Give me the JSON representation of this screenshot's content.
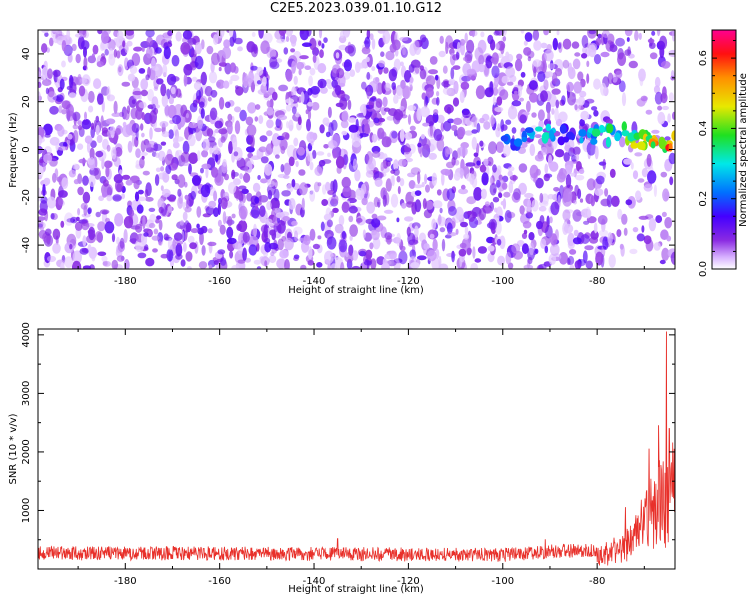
{
  "figure_title": "C2E5.2023.039.01.10.G12",
  "colors": {
    "snr_line": "#e8302a",
    "spectrogram_base": "#8a2be2",
    "axis": "#000000",
    "background": "#ffffff"
  },
  "chart_data": [
    {
      "id": "spectrogram",
      "type": "heatmap",
      "title": "",
      "xlabel": "Height of straight line (km)",
      "ylabel": "Frequency (Hz)",
      "xlim": [
        -198.5,
        -63.5
      ],
      "ylim": [
        -50,
        50
      ],
      "x_ticks": [
        -180,
        -160,
        -140,
        -120,
        -100,
        -80
      ],
      "x_tick_labels": [
        "-180",
        "-160",
        "-140",
        "-120",
        "-100",
        "-80"
      ],
      "y_ticks": [
        -40,
        -20,
        0,
        20,
        40
      ],
      "y_tick_labels": [
        "-40",
        "-20",
        "0",
        "20",
        "40"
      ],
      "grid": false,
      "colorbar": {
        "label": "Normalized spectral amplitude",
        "range": [
          0.0,
          0.68
        ],
        "ticks": [
          0.0,
          0.2,
          0.4,
          0.6
        ],
        "tick_labels": [
          "0.0",
          "0.2",
          "0.4",
          "0.6"
        ],
        "colormap": "rainbow: white-violet-purple-blue-cyan-green-yellow-orange-red-magenta"
      },
      "background_amplitude_range": [
        0.02,
        0.14
      ],
      "signal_ridge": [
        {
          "x": -98,
          "y": 4,
          "a": 0.25
        },
        {
          "x": -94,
          "y": 6,
          "a": 0.3
        },
        {
          "x": -90,
          "y": 7,
          "a": 0.33
        },
        {
          "x": -86,
          "y": 6,
          "a": 0.22
        },
        {
          "x": -82,
          "y": 5,
          "a": 0.3
        },
        {
          "x": -79,
          "y": 6,
          "a": 0.36
        },
        {
          "x": -76,
          "y": 7,
          "a": 0.38
        },
        {
          "x": -73,
          "y": 6,
          "a": 0.42
        },
        {
          "x": -71,
          "y": 4,
          "a": 0.48
        },
        {
          "x": -69,
          "y": 3,
          "a": 0.5
        },
        {
          "x": -67,
          "y": 2,
          "a": 0.56
        },
        {
          "x": -65,
          "y": 3,
          "a": 0.6
        }
      ]
    },
    {
      "id": "snr",
      "type": "line",
      "title": "",
      "xlabel": "Height of straight line (km)",
      "ylabel": "SNR (10 * v/v)",
      "xlim": [
        -198.5,
        -63.5
      ],
      "ylim": [
        0,
        4100
      ],
      "x_ticks": [
        -180,
        -160,
        -140,
        -120,
        -100,
        -80
      ],
      "x_tick_labels": [
        "-180",
        "-160",
        "-140",
        "-120",
        "-100",
        "-80"
      ],
      "y_ticks": [
        1000,
        2000,
        3000,
        4000
      ],
      "y_tick_labels": [
        "1000",
        "2000",
        "3000",
        "4000"
      ],
      "grid": false,
      "series": [
        {
          "color": "#e8302a",
          "baseline": 250,
          "noise_amplitude": 120,
          "envelope": [
            {
              "x": -198.5,
              "v": 270
            },
            {
              "x": -140,
              "v": 260
            },
            {
              "x": -100,
              "v": 240
            },
            {
              "x": -90,
              "v": 300
            },
            {
              "x": -80,
              "v": 330
            },
            {
              "x": -75,
              "v": 500
            },
            {
              "x": -72,
              "v": 850
            },
            {
              "x": -70,
              "v": 1200
            },
            {
              "x": -68,
              "v": 1500
            },
            {
              "x": -66,
              "v": 1800
            },
            {
              "x": -64.5,
              "v": 2000
            },
            {
              "x": -63.5,
              "v": 1900
            }
          ],
          "peaks": [
            {
              "x": -135,
              "v": 520
            },
            {
              "x": -91,
              "v": 500
            },
            {
              "x": -74,
              "v": 1050
            },
            {
              "x": -69,
              "v": 2050
            },
            {
              "x": -67,
              "v": 2450
            },
            {
              "x": -65.3,
              "v": 4050
            },
            {
              "x": -64.7,
              "v": 2400
            }
          ]
        }
      ]
    }
  ]
}
